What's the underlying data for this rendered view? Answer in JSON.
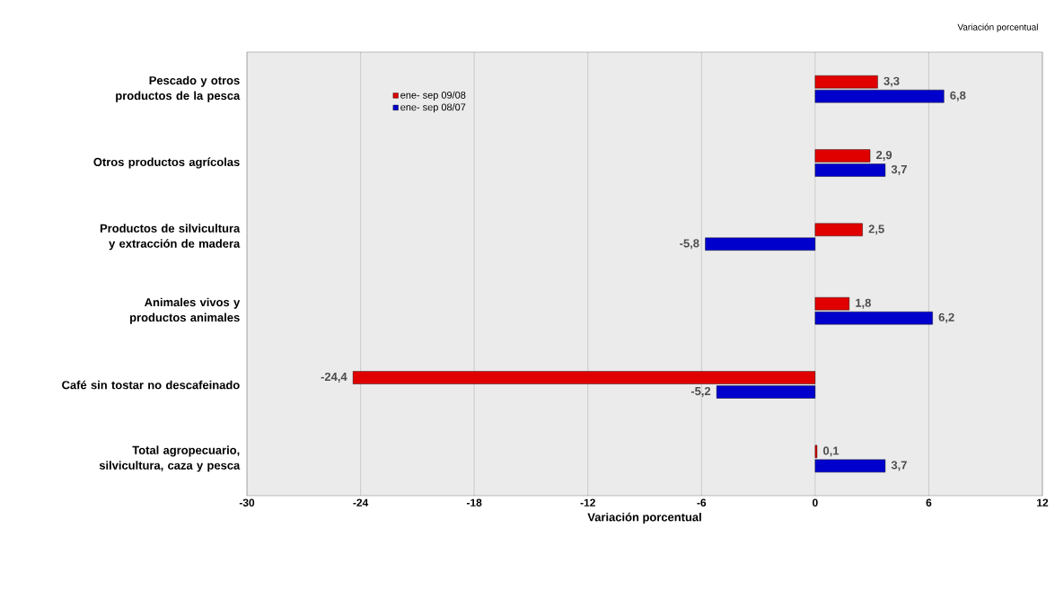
{
  "chart_data": {
    "type": "bar",
    "orientation": "horizontal",
    "subtitle": "Variación porcentual",
    "xlabel": "Variación porcentual",
    "categories": [
      "Pescado y otros productos de la pesca",
      "Otros productos agrícolas",
      "Productos de silvicultura y extracción de madera",
      "Animales vivos y productos animales",
      "Café sin tostar no descafeinado",
      "Total agropecuario, silvicultura, caza y pesca"
    ],
    "series": [
      {
        "name": "ene- sep 09/08",
        "color": "#e00000",
        "values": [
          3.3,
          2.9,
          2.5,
          1.8,
          -24.4,
          0.1
        ],
        "value_labels": [
          "3,3",
          "2,9",
          "2,5",
          "1,8",
          "-24,4",
          "0,1"
        ]
      },
      {
        "name": "ene- sep 08/07",
        "color": "#0000cc",
        "values": [
          6.8,
          3.7,
          -5.8,
          6.2,
          -5.2,
          3.7
        ],
        "value_labels": [
          "6,8",
          "3,7",
          "-5,8",
          "6,2",
          "-5,2",
          "3,7"
        ]
      }
    ],
    "xlim": [
      -30,
      12
    ],
    "xticks": [
      -30,
      -24,
      -18,
      -12,
      -6,
      0,
      6,
      12
    ],
    "grid": "x",
    "legend": "top left"
  }
}
